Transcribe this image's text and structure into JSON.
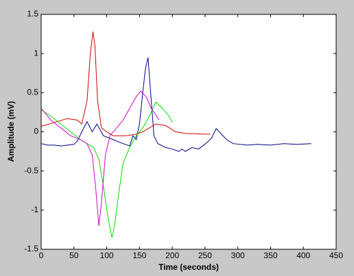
{
  "chart_data": {
    "type": "line",
    "xlabel": "Time (seconds)",
    "ylabel": "Amplitude (mV)",
    "xlim": [
      0,
      450
    ],
    "xticks": [
      0,
      50,
      100,
      150,
      200,
      250,
      300,
      350,
      400,
      450
    ],
    "ylim": [
      -1.5,
      1.5
    ],
    "yticks": [
      -1.5,
      -1,
      -0.5,
      0,
      0.5,
      1,
      1.5
    ],
    "series": [
      {
        "color": "#00008b",
        "x": [
          0,
          10,
          20,
          30,
          40,
          50,
          55,
          62,
          70,
          78,
          85,
          95,
          110,
          125,
          135,
          140,
          145,
          150,
          155,
          159,
          163,
          167,
          172,
          178,
          190,
          200,
          210,
          215,
          220,
          230,
          240,
          251,
          260,
          267,
          275,
          283,
          293,
          314,
          330,
          350,
          370,
          390,
          412
        ],
        "values": [
          -0.15,
          -0.17,
          -0.17,
          -0.18,
          -0.17,
          -0.16,
          -0.12,
          0.0,
          0.13,
          0.0,
          0.1,
          -0.05,
          -0.1,
          -0.15,
          -0.18,
          -0.05,
          -0.1,
          0.1,
          0.5,
          0.8,
          0.95,
          0.5,
          -0.05,
          -0.15,
          -0.2,
          -0.22,
          -0.25,
          -0.22,
          -0.25,
          -0.2,
          -0.22,
          -0.15,
          -0.08,
          0.04,
          -0.03,
          -0.1,
          -0.15,
          -0.17,
          -0.16,
          -0.17,
          -0.15,
          -0.16,
          -0.15
        ]
      },
      {
        "color": "#cc0000",
        "x": [
          0,
          20,
          40,
          55,
          62,
          70,
          75,
          79,
          82,
          86,
          92,
          100,
          110,
          130,
          145,
          155,
          165,
          175,
          190,
          205,
          220,
          250,
          258
        ],
        "values": [
          0.07,
          0.12,
          0.17,
          0.15,
          0.1,
          0.4,
          1.0,
          1.28,
          1.1,
          0.4,
          0.05,
          0.0,
          -0.05,
          -0.05,
          -0.03,
          0.0,
          0.05,
          0.1,
          0.08,
          0.0,
          -0.02,
          -0.03,
          -0.03
        ]
      },
      {
        "color": "#00dd00",
        "x": [
          0,
          15,
          30,
          45,
          60,
          70,
          80,
          88,
          95,
          102,
          108,
          112,
          118,
          125,
          135,
          145,
          155,
          165,
          175,
          185,
          195,
          200
        ],
        "values": [
          0.28,
          0.2,
          0.1,
          0.0,
          -0.1,
          -0.15,
          -0.2,
          -0.35,
          -0.7,
          -1.1,
          -1.35,
          -1.2,
          -0.8,
          -0.4,
          -0.2,
          -0.05,
          0.05,
          0.2,
          0.38,
          0.3,
          0.2,
          0.12
        ]
      },
      {
        "color": "#cc00cc",
        "x": [
          0,
          15,
          30,
          45,
          60,
          70,
          78,
          83,
          88,
          92,
          98,
          105,
          115,
          125,
          135,
          145,
          152,
          160,
          168,
          172,
          180
        ],
        "values": [
          0.3,
          0.15,
          0.05,
          -0.05,
          -0.1,
          -0.15,
          -0.3,
          -0.7,
          -1.2,
          -0.9,
          -0.3,
          -0.05,
          0.05,
          0.15,
          0.3,
          0.45,
          0.52,
          0.45,
          0.3,
          0.25,
          0.15
        ]
      }
    ]
  }
}
